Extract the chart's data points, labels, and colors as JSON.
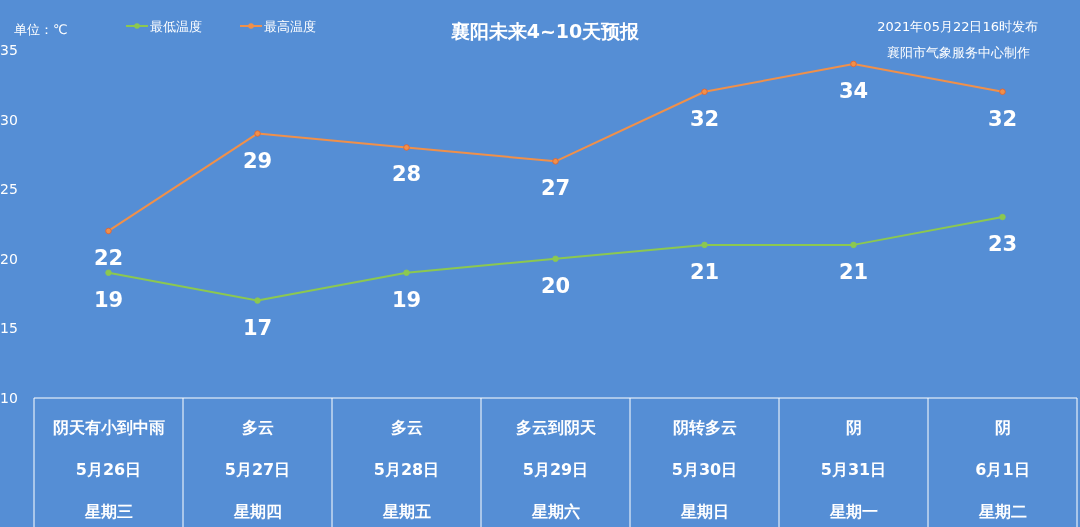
{
  "chart_data": {
    "type": "line",
    "title": "襄阳未来4~10天预报",
    "annotations": [
      "单位：℃",
      "2021年05月22日16时发布",
      "襄阳市气象服务中心制作"
    ],
    "categories": [
      "阴天有小到中雨\n5月26日星期三",
      "多云\n5月27日星期四",
      "多云\n5月28日星期五",
      "多云到阴天\n5月29日星期六",
      "阴转多云\n5月30日星期日",
      "阴\n5月31日星期一",
      "阴\n6月1日星期二"
    ],
    "series": [
      {
        "name": "最低温度",
        "color": "#8cc850",
        "values": [
          19,
          17,
          19,
          20,
          21,
          21,
          23
        ]
      },
      {
        "name": "最高温度",
        "color": "#f0904a",
        "values": [
          22,
          29,
          28,
          27,
          32,
          34,
          32
        ]
      }
    ],
    "ylim": [
      10,
      35
    ],
    "yticks": [
      10,
      15,
      20,
      25,
      30,
      35
    ],
    "data_labels": true,
    "legend": "top",
    "marker": "circle"
  }
}
